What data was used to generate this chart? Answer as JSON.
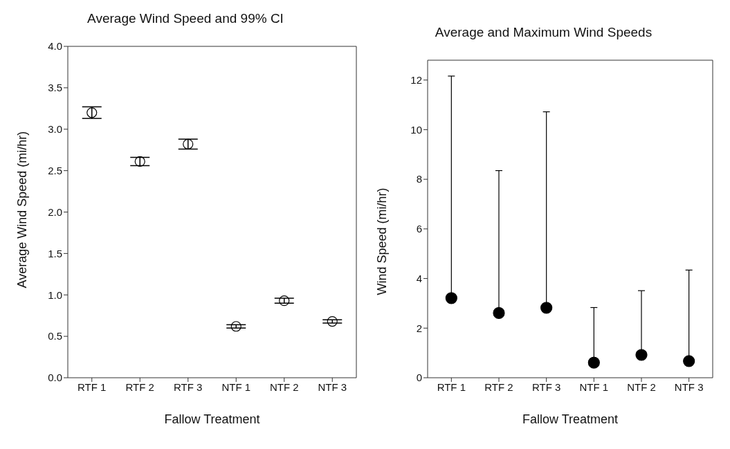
{
  "chart_data": [
    {
      "type": "scatter",
      "title": "Average Wind Speed and 99% CI",
      "xlabel": "Fallow Treatment",
      "ylabel": "Average Wind Speed (mi/hr)",
      "categories": [
        "RTF 1",
        "RTF 2",
        "RTF 3",
        "NTF 1",
        "NTF 2",
        "NTF 3"
      ],
      "series": [
        {
          "color": "#000000",
          "values": [
            3.2,
            2.61,
            2.82,
            0.62,
            0.93,
            0.68
          ],
          "errors": [
            0.07,
            0.05,
            0.06,
            0.02,
            0.03,
            0.02
          ]
        }
      ],
      "ylim": [
        0,
        4
      ],
      "yticks": [
        {
          "value": 0,
          "label": "0.0"
        },
        0.5,
        {
          "value": 1,
          "label": "1.0"
        },
        1.5,
        {
          "value": 2,
          "label": "2.0"
        },
        2.5,
        {
          "value": 3,
          "label": "3.0"
        },
        3.5,
        {
          "value": 4,
          "label": "4.0"
        }
      ],
      "marker": "circle",
      "grid": false,
      "legend": false
    },
    {
      "type": "scatter",
      "title": "Average and Maximum Wind Speeds",
      "xlabel": "Fallow Treatment",
      "ylabel": "Wind Speed (mi/hr)",
      "categories": [
        "RTF 1",
        "RTF 2",
        "RTF 3",
        "NTF 1",
        "NTF 2",
        "NTF 3"
      ],
      "series": [
        {
          "color": "#000000",
          "values": [
            3.21,
            2.61,
            2.82,
            0.61,
            0.92,
            0.67
          ],
          "errors": [
            [
              3.21,
              12.16
            ],
            [
              2.61,
              8.35
            ],
            [
              2.82,
              10.72
            ],
            [
              0.61,
              2.83
            ],
            [
              0.92,
              3.51
            ],
            [
              0.67,
              4.34
            ]
          ]
        }
      ],
      "ylim": [
        0,
        12.8
      ],
      "yticks": [
        0,
        2,
        4,
        6,
        8,
        10,
        12
      ],
      "marker": "circle",
      "grid": false,
      "legend": false
    }
  ]
}
